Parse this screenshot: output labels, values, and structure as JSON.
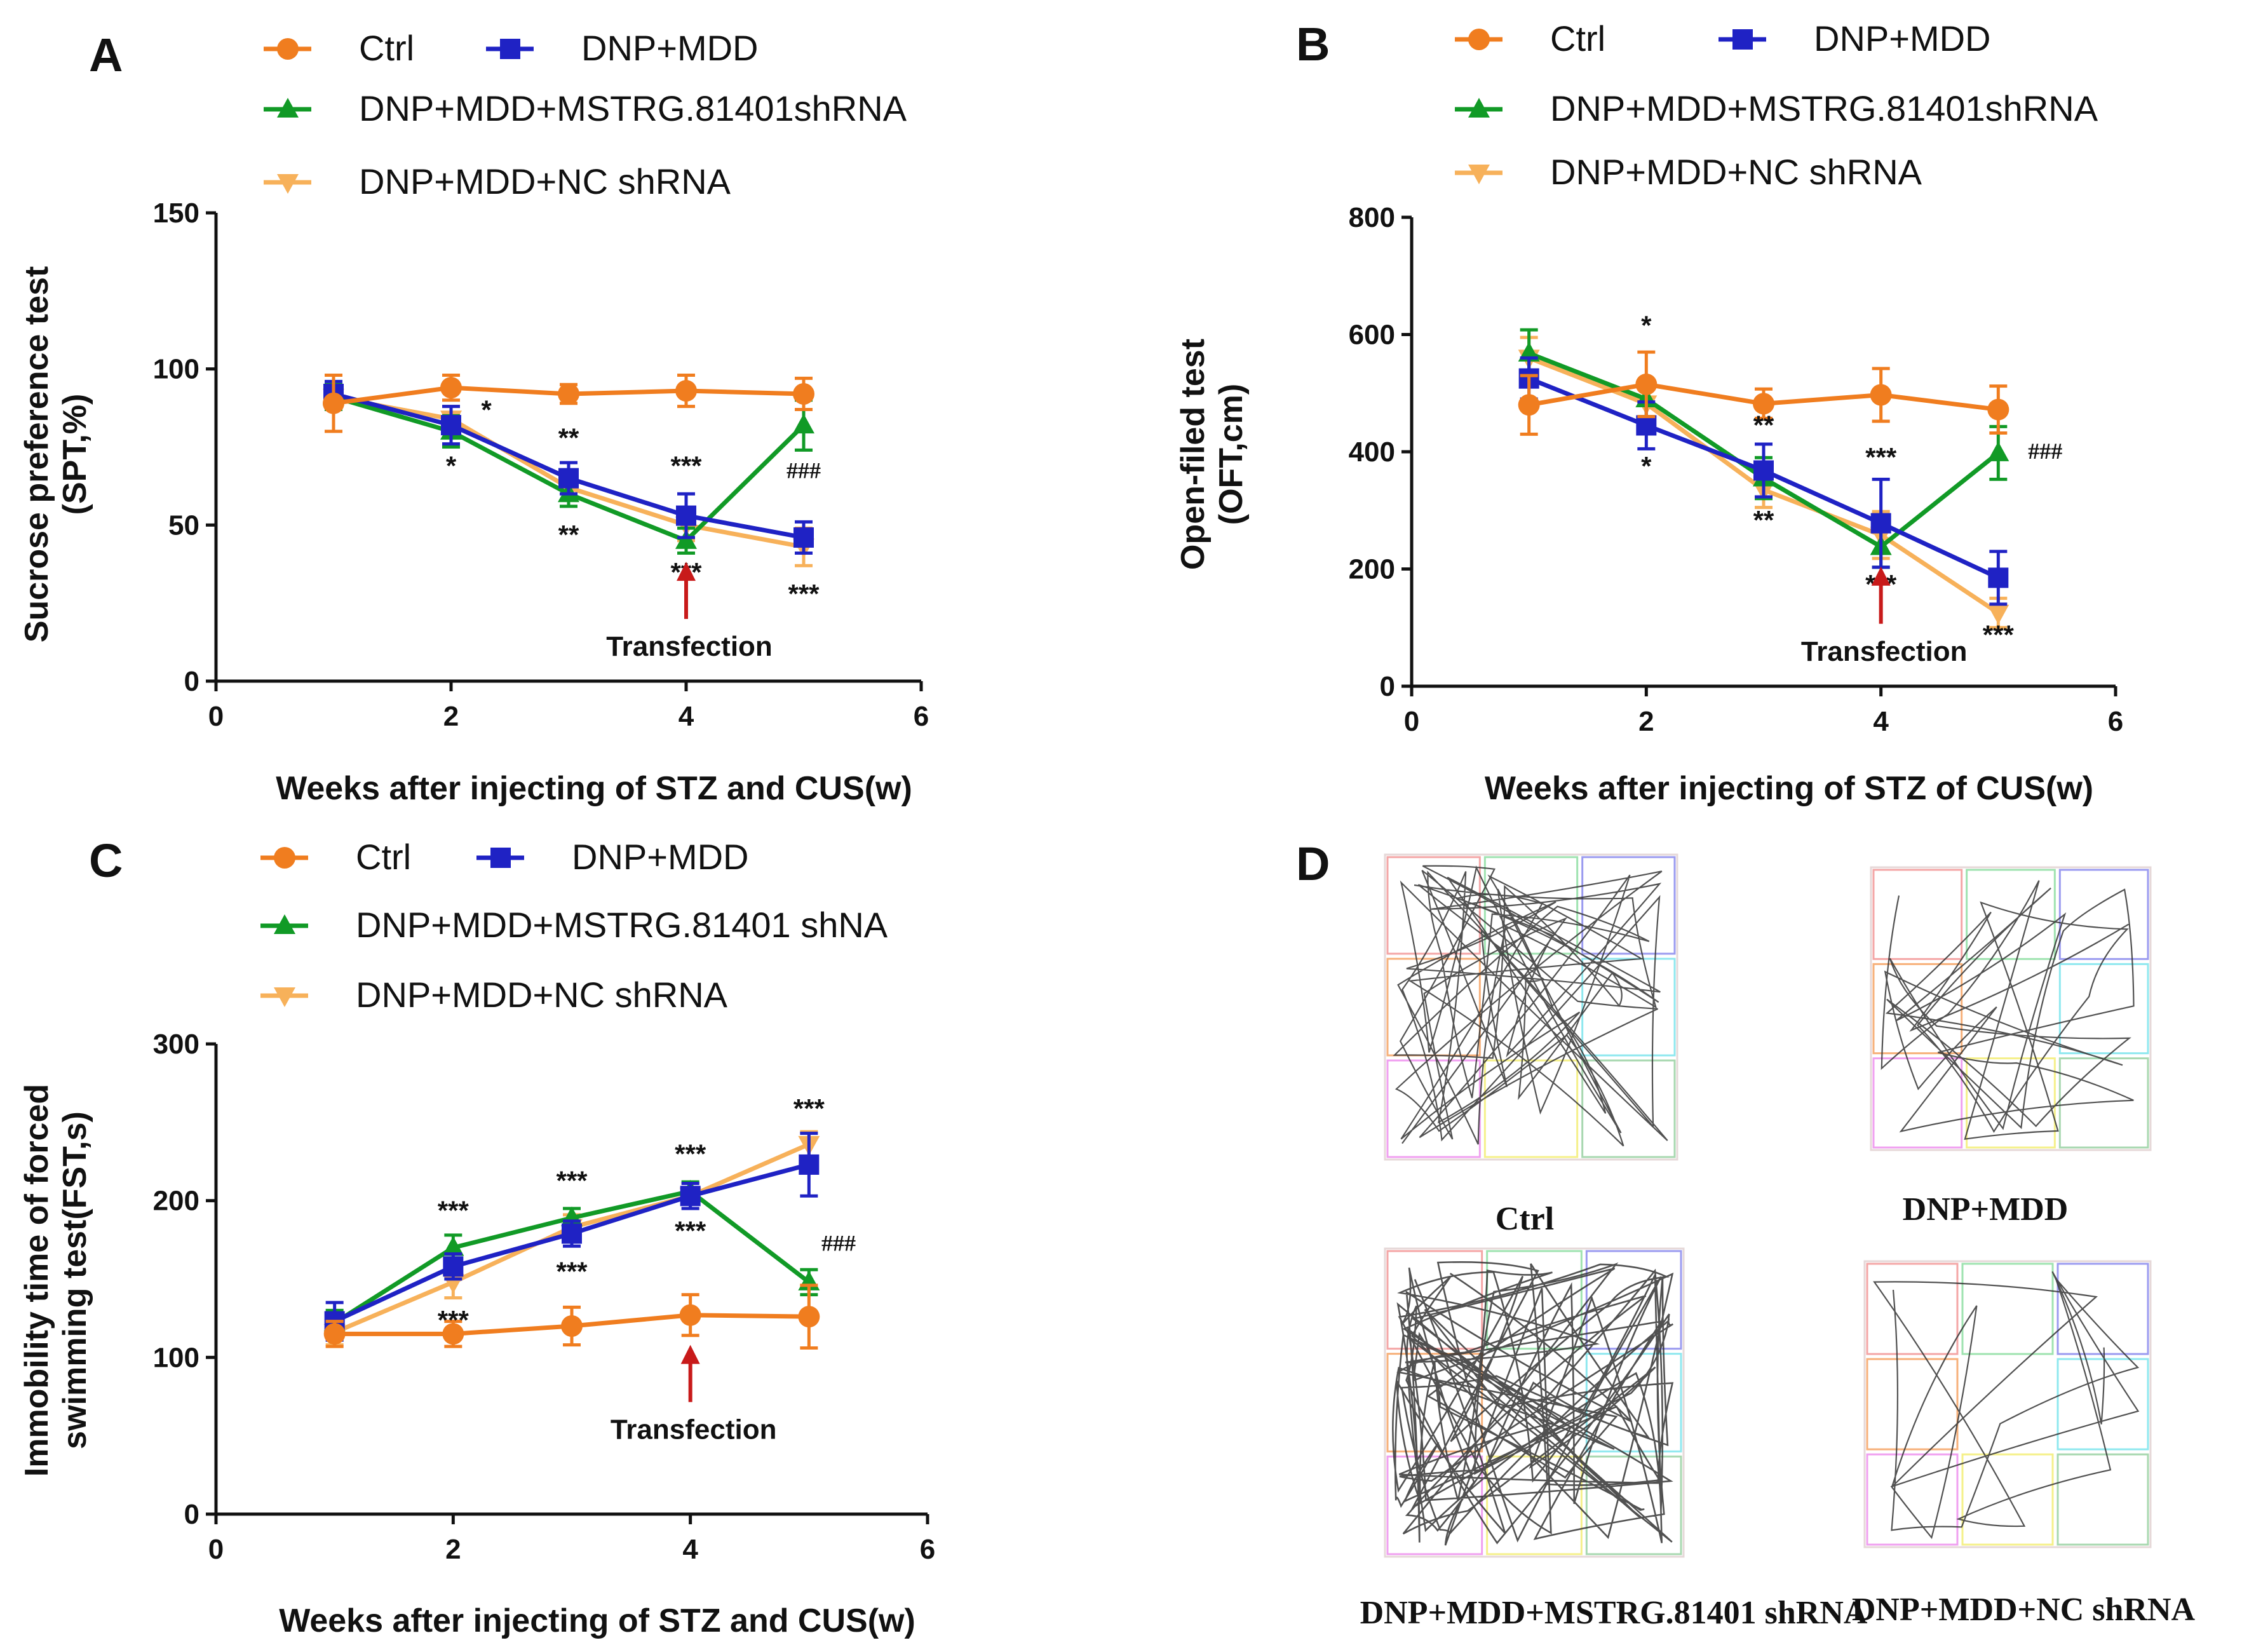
{
  "colors": {
    "Ctrl": "#f07d1f",
    "DNP+MDD": "#1f22c4",
    "DNP+MDD+MSTRG.81401shRNA": "#119a26",
    "DNP+MDD+NC shRNA": "#f7b15a",
    "arrow": "#c81a1a",
    "axis": "#111111"
  },
  "chart_data": [
    {
      "panel": "A",
      "type": "line",
      "legend": [
        "Ctrl",
        "DNP+MDD",
        "DNP+MDD+MSTRG.81401shRNA",
        "DNP+MDD+NC shRNA"
      ],
      "xlabel": "Weeks after injecting of STZ and CUS(w)",
      "ylabel_line1": "Sucrose preference test",
      "ylabel_line2": "(SPT,%)",
      "xlim": [
        0,
        6
      ],
      "ylim": [
        0,
        150
      ],
      "xticks": [
        0,
        2,
        4,
        6
      ],
      "yticks": [
        0,
        50,
        100,
        150
      ],
      "x": [
        1,
        2,
        3,
        4,
        5
      ],
      "series": [
        {
          "name": "Ctrl",
          "values": [
            89,
            94,
            92,
            93,
            92
          ],
          "errors": [
            9,
            4,
            3,
            5,
            5
          ],
          "marker": "circle"
        },
        {
          "name": "DNP+MDD",
          "values": [
            92,
            82,
            65,
            53,
            46
          ],
          "errors": [
            4,
            6,
            5,
            7,
            5
          ],
          "marker": "square"
        },
        {
          "name": "DNP+MDD+MSTRG.81401shRNA",
          "values": [
            91,
            80,
            60,
            45,
            82
          ],
          "errors": [
            4,
            5,
            4,
            4,
            8
          ],
          "marker": "triangle"
        },
        {
          "name": "DNP+MDD+NC shRNA",
          "values": [
            91,
            84,
            62,
            50,
            43
          ],
          "errors": [
            3,
            4,
            4,
            5,
            6
          ],
          "marker": "triangle-down"
        }
      ],
      "annotations": [
        {
          "text": "*",
          "x": 2.3,
          "y": 84
        },
        {
          "text": "*",
          "x": 2.0,
          "y": 66
        },
        {
          "text": "**",
          "x": 3.0,
          "y": 75
        },
        {
          "text": "**",
          "x": 3.0,
          "y": 44
        },
        {
          "text": "***",
          "x": 4.0,
          "y": 66
        },
        {
          "text": "***",
          "x": 4.0,
          "y": 32
        },
        {
          "text": "###",
          "x": 5.0,
          "y": 65
        },
        {
          "text": "***",
          "x": 5.0,
          "y": 25
        }
      ],
      "arrow_x": 4,
      "arrow_label": "Transfection"
    },
    {
      "panel": "B",
      "type": "line",
      "legend": [
        "Ctrl",
        "DNP+MDD",
        "DNP+MDD+MSTRG.81401shRNA",
        "DNP+MDD+NC shRNA"
      ],
      "xlabel": "Weeks after injecting of STZ of CUS(w)",
      "ylabel_line1": "Open-filed test",
      "ylabel_line2": "(OFT,cm)",
      "xlim": [
        0,
        6
      ],
      "ylim": [
        0,
        800
      ],
      "xticks": [
        0,
        2,
        4,
        6
      ],
      "yticks": [
        0,
        200,
        400,
        600,
        800
      ],
      "x": [
        1,
        2,
        3,
        4,
        5
      ],
      "series": [
        {
          "name": "Ctrl",
          "values": [
            480,
            515,
            482,
            497,
            472
          ],
          "errors": [
            50,
            55,
            25,
            45,
            40
          ],
          "marker": "circle"
        },
        {
          "name": "DNP+MDD",
          "values": [
            525,
            445,
            368,
            278,
            185
          ],
          "errors": [
            35,
            40,
            45,
            75,
            45
          ],
          "marker": "square"
        },
        {
          "name": "DNP+MDD+MSTRG.81401shRNA",
          "values": [
            568,
            490,
            355,
            238,
            398
          ],
          "errors": [
            40,
            30,
            35,
            35,
            45
          ],
          "marker": "triangle"
        },
        {
          "name": "DNP+MDD+NC shRNA",
          "values": [
            560,
            482,
            335,
            258,
            125
          ],
          "errors": [
            35,
            30,
            30,
            40,
            25
          ],
          "marker": "triangle-down"
        }
      ],
      "annotations": [
        {
          "text": "*",
          "x": 2.0,
          "y": 600
        },
        {
          "text": "*",
          "x": 2.0,
          "y": 360
        },
        {
          "text": "**",
          "x": 3.0,
          "y": 430
        },
        {
          "text": "**",
          "x": 3.0,
          "y": 268
        },
        {
          "text": "***",
          "x": 4.0,
          "y": 375
        },
        {
          "text": "***",
          "x": 4.0,
          "y": 158
        },
        {
          "text": "###",
          "x": 5.4,
          "y": 388
        },
        {
          "text": "***",
          "x": 5.0,
          "y": 72
        }
      ],
      "arrow_x": 4,
      "arrow_label": "Transfection"
    },
    {
      "panel": "C",
      "type": "line",
      "legend": [
        "Ctrl",
        "DNP+MDD",
        "DNP+MDD+MSTRG.81401 shNA",
        "DNP+MDD+NC shRNA"
      ],
      "xlabel": "Weeks after injecting of STZ and CUS(w)",
      "ylabel_line1": "Immobility time of forced",
      "ylabel_line2": "swimming test(FST,s)",
      "xlim": [
        0,
        6
      ],
      "ylim": [
        0,
        300
      ],
      "xticks": [
        0,
        2,
        4,
        6
      ],
      "yticks": [
        0,
        100,
        200,
        300
      ],
      "x": [
        1,
        2,
        3,
        4,
        5
      ],
      "series": [
        {
          "name": "Ctrl",
          "values": [
            115,
            115,
            120,
            127,
            126
          ],
          "errors": [
            8,
            8,
            12,
            13,
            20
          ],
          "marker": "circle"
        },
        {
          "name": "DNP+MDD",
          "values": [
            123,
            158,
            179,
            203,
            223
          ],
          "errors": [
            12,
            8,
            8,
            8,
            20
          ],
          "marker": "square"
        },
        {
          "name": "DNP+MDD+MSTRG.81401 shNA",
          "values": [
            122,
            170,
            189,
            206,
            148
          ],
          "errors": [
            8,
            8,
            6,
            6,
            8
          ],
          "marker": "triangle"
        },
        {
          "name": "DNP+MDD+NC shRNA",
          "values": [
            116,
            148,
            183,
            203,
            236
          ],
          "errors": [
            8,
            10,
            8,
            8,
            8
          ],
          "marker": "triangle-down"
        }
      ],
      "annotations": [
        {
          "text": "***",
          "x": 2.0,
          "y": 188
        },
        {
          "text": "***",
          "x": 2.0,
          "y": 118
        },
        {
          "text": "***",
          "x": 3.0,
          "y": 207
        },
        {
          "text": "***",
          "x": 3.0,
          "y": 149
        },
        {
          "text": "***",
          "x": 4.0,
          "y": 224
        },
        {
          "text": "***",
          "x": 4.0,
          "y": 175
        },
        {
          "text": "***",
          "x": 5.0,
          "y": 253
        },
        {
          "text": "###",
          "x": 5.25,
          "y": 168
        }
      ],
      "arrow_x": 4,
      "arrow_label": "Transfection"
    }
  ],
  "panel_d": {
    "letter": "D",
    "tracks": [
      {
        "label": "Ctrl"
      },
      {
        "label": "DNP+MDD"
      },
      {
        "label": "DNP+MDD+MSTRG.81401 shRNA"
      },
      {
        "label": "DNP+MDD+NC shRNA"
      }
    ]
  }
}
